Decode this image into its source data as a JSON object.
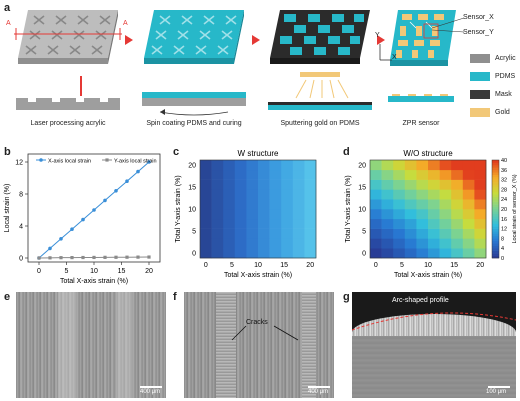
{
  "panels": {
    "a": "a",
    "b": "b",
    "c": "c",
    "d": "d",
    "e": "e",
    "f": "f",
    "g": "g"
  },
  "panel_a": {
    "steps": [
      "Laser processing acrylic",
      "Spin coating PDMS and curing",
      "Sputtering gold on PDMS",
      "ZPR sensor"
    ],
    "section_marker": "A",
    "sensor_x": "Sensor_X",
    "sensor_y": "Sensor_Y",
    "axis_x": "X",
    "axis_y": "Y",
    "legend": [
      {
        "label": "Acrylic",
        "color": "#8f8f8f"
      },
      {
        "label": "PDMS",
        "color": "#27b8c9"
      },
      {
        "label": "Mask",
        "color": "#3a3a3a"
      },
      {
        "label": "Gold",
        "color": "#f2c878"
      }
    ],
    "arrow_color": "#e53935"
  },
  "chart_data": [
    {
      "type": "line",
      "xlabel": "Total X-axis strain (%)",
      "ylabel": "Local strain (%)",
      "xlim": [
        -2,
        22
      ],
      "ylim": [
        -0.5,
        13
      ],
      "xticks": [
        "0",
        "5",
        "10",
        "15",
        "20"
      ],
      "yticks": [
        "0",
        "4",
        "8",
        "12"
      ],
      "legend_position": "top",
      "series": [
        {
          "name": "X-axis local strain",
          "color": "#3a8fd8",
          "x": [
            0,
            2,
            4,
            6,
            8,
            10,
            12,
            14,
            16,
            18,
            20
          ],
          "y": [
            0,
            1.2,
            2.4,
            3.6,
            4.8,
            6.0,
            7.2,
            8.4,
            9.6,
            10.8,
            12.0
          ]
        },
        {
          "name": "Y-axis local strain",
          "color": "#8a8a8a",
          "x": [
            0,
            2,
            4,
            6,
            8,
            10,
            12,
            14,
            16,
            18,
            20
          ],
          "y": [
            0,
            0.02,
            0.04,
            0.05,
            0.06,
            0.07,
            0.08,
            0.09,
            0.1,
            0.11,
            0.12
          ]
        }
      ]
    },
    {
      "type": "heatmap",
      "title": "W structure",
      "xlabel": "Total X-axis strain (%)",
      "ylabel": "Total Y-axis strain (%)",
      "xticks": [
        "0",
        "5",
        "10",
        "15",
        "20"
      ],
      "yticks": [
        "0",
        "5",
        "10",
        "15",
        "20"
      ],
      "grid": "10x10",
      "rule": "value depends on X strain only, 0 to ~12 at X=20%"
    },
    {
      "type": "heatmap",
      "title": "W/O structure",
      "xlabel": "Total X-axis strain (%)",
      "ylabel": "Total Y-axis strain (%)",
      "xticks": [
        "0",
        "5",
        "10",
        "15",
        "20"
      ],
      "yticks": [
        "0",
        "5",
        "10",
        "15",
        "20"
      ],
      "colorbar_label": "Local strain of sensor_X (%)",
      "colorbar_ticks": [
        "0",
        "4",
        "8",
        "12",
        "16",
        "20",
        "24",
        "28",
        "32",
        "36",
        "40"
      ],
      "rule": "value increases with both X and Y strain, ~0 at origin to ~40 at (20,20)"
    }
  ],
  "micrographs": {
    "e_scale": "400 μm",
    "f_scale": "400 μm",
    "f_annotation": "Cracks",
    "g_annotation": "Arc-shaped profile",
    "g_scale": "100 μm"
  }
}
